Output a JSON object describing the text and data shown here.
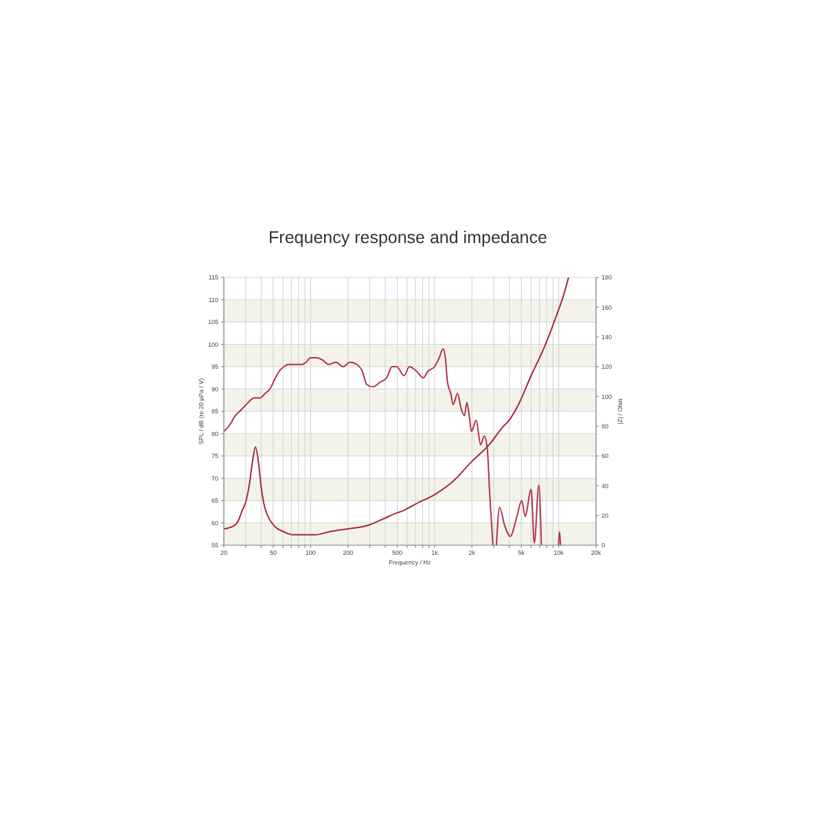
{
  "chart_data": {
    "type": "line",
    "title": "Frequency response and impedance",
    "xlabel": "Frequency / Hz",
    "ylabel": "SPL / dB (re 20 µPa / V)",
    "y2label": "|Z| / Ohm",
    "log": "x",
    "grid": true,
    "xlim": [
      20,
      20000
    ],
    "xticks": [
      20,
      {
        "value": 30,
        "label": null
      },
      {
        "value": 40,
        "label": null
      },
      50,
      {
        "value": 60,
        "label": null
      },
      {
        "value": 70,
        "label": null
      },
      {
        "value": 80,
        "label": null
      },
      {
        "value": 90,
        "label": null
      },
      100,
      200,
      {
        "value": 300,
        "label": null
      },
      {
        "value": 400,
        "label": null
      },
      500,
      {
        "value": 600,
        "label": null
      },
      {
        "value": 700,
        "label": null
      },
      {
        "value": 800,
        "label": null
      },
      {
        "value": 900,
        "label": null
      },
      {
        "value": 1000,
        "label": "1k"
      },
      {
        "value": 2000,
        "label": "2k"
      },
      {
        "value": 3000,
        "label": null
      },
      {
        "value": 4000,
        "label": null
      },
      {
        "value": 5000,
        "label": "5k"
      },
      {
        "value": 6000,
        "label": null
      },
      {
        "value": 7000,
        "label": null
      },
      {
        "value": 8000,
        "label": null
      },
      {
        "value": 9000,
        "label": null
      },
      {
        "value": 10000,
        "label": "10k"
      },
      {
        "value": 20000,
        "label": "20k"
      }
    ],
    "ylim": [
      55,
      115
    ],
    "yticks": [
      55,
      60,
      65,
      70,
      75,
      80,
      85,
      90,
      95,
      100,
      105,
      110,
      115
    ],
    "y2lim": [
      0,
      180
    ],
    "y2ticks": [
      0,
      20,
      40,
      60,
      80,
      100,
      120,
      140,
      160,
      180
    ],
    "series": [
      {
        "color": "#b0304a",
        "x": [
          20,
          23,
          24,
          28,
          31.5,
          35,
          39,
          43,
          47,
          51,
          56,
          61,
          66,
          75,
          85,
          92,
          100,
          110,
          125,
          140,
          160,
          183,
          208,
          236,
          261,
          284,
          319,
          362,
          410,
          454,
          494,
          568,
          626,
          714,
          810,
          884,
          1000,
          1090,
          1170,
          1220,
          1270,
          1350,
          1410,
          1530,
          1640,
          1740,
          1820,
          1900,
          1980,
          2160,
          2350,
          2510,
          2660,
          2780,
          2950,
          3050,
          3150,
          3340,
          3660,
          4080,
          4560,
          5040,
          5360,
          6000,
          6360,
          6920,
          7250,
          8500,
          9950,
          10160,
          10350
        ],
        "values": [
          80.5,
          82.5,
          83.5,
          85.5,
          87,
          88,
          88,
          89,
          90,
          92,
          94,
          95,
          95.5,
          95.5,
          95.5,
          96,
          97,
          97,
          96.5,
          95.5,
          96,
          95,
          96,
          95.5,
          94,
          91,
          90.5,
          91.5,
          92.5,
          95,
          95,
          93,
          95,
          94,
          92.5,
          94,
          95,
          97,
          99,
          97,
          91.5,
          89,
          86.5,
          89,
          85.5,
          84,
          87,
          84,
          80.5,
          83,
          77.5,
          79.5,
          76.5,
          66.5,
          55,
          null,
          55,
          63.5,
          59.5,
          57,
          61,
          65,
          61.5,
          67.5,
          55.5,
          68.5,
          55,
          null,
          55,
          58,
          55
        ]
      },
      {
        "axis": "y2",
        "color": "#a8243c",
        "x": [
          20,
          24,
          26,
          28,
          30,
          32,
          34,
          36,
          38,
          40,
          42,
          45,
          51,
          61,
          72,
          89,
          110,
          141,
          199,
          281,
          392,
          506,
          552,
          644,
          714,
          1000,
          1410,
          1980,
          2780,
          3590,
          3900,
          4640,
          6000,
          7740,
          9560,
          10860,
          12000
        ],
        "values": [
          11,
          13,
          16,
          23,
          29,
          40,
          56,
          66,
          56,
          39,
          28,
          20,
          13,
          9,
          7,
          7,
          7,
          9,
          11,
          13,
          18,
          22,
          23,
          26,
          28,
          34,
          43,
          56,
          68,
          80,
          83,
          93,
          114,
          134,
          154,
          167,
          180
        ]
      }
    ]
  }
}
